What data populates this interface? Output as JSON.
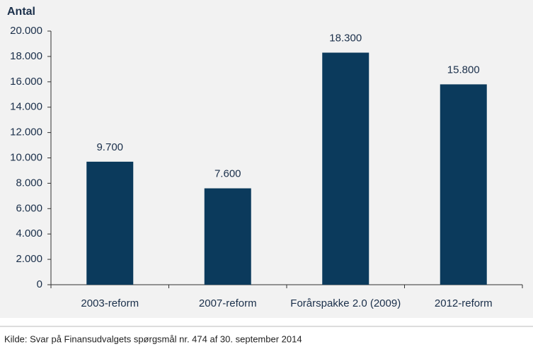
{
  "chart_data": {
    "type": "bar",
    "y_label": "Antal",
    "categories": [
      "2003-reform",
      "2007-reform",
      "Forårspakke 2.0 (2009)",
      "2012-reform"
    ],
    "values": [
      9700,
      7600,
      18300,
      15800
    ],
    "value_labels": [
      "9.700",
      "7.600",
      "18.300",
      "15.800"
    ],
    "color": "#0b3a5c",
    "ylim": [
      0,
      20000
    ],
    "yticks": [
      0,
      {
        "value": 2000,
        "label": "2.000"
      },
      {
        "value": 4000,
        "label": "4.000"
      },
      {
        "value": 6000,
        "label": "6.000"
      },
      {
        "value": 8000,
        "label": "8.000"
      },
      {
        "value": 10000,
        "label": "10.000"
      },
      {
        "value": 12000,
        "label": "12.000"
      },
      {
        "value": 14000,
        "label": "14.000"
      },
      {
        "value": 16000,
        "label": "16.000"
      },
      {
        "value": 18000,
        "label": "18.000"
      },
      {
        "value": 20000,
        "label": "20.000"
      }
    ],
    "grid": false,
    "source": "Kilde: Svar på Finansudvalgets spørgsmål nr. 474 af 30. september 2014"
  }
}
